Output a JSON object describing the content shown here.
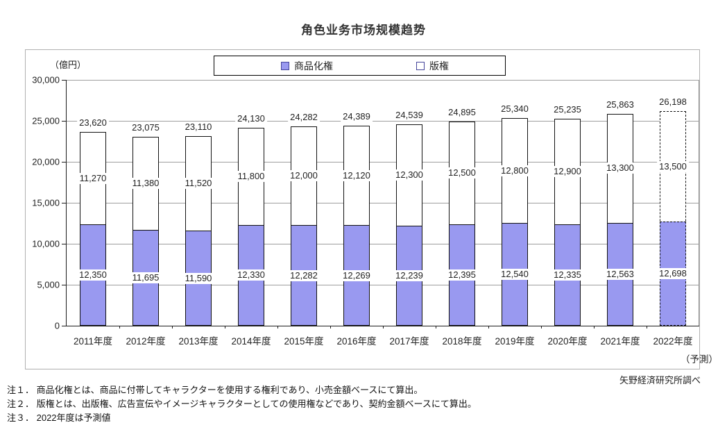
{
  "title": "角色业务市场规模趋势",
  "unit_label": "（億円）",
  "source": "矢野経済研究所調べ",
  "legend": [
    {
      "label": "商品化権",
      "swatch": "#9999F0"
    },
    {
      "label": "版権",
      "swatch": "#FFFFFF"
    }
  ],
  "notes": [
    "注１． 商品化権とは、商品に付帯してキャラクターを使用する権利であり、小売金額ベースにて算出。",
    "注２． 版権とは、出版権、広告宣伝やイメージキャラクターとしての使用権などであり、契約金額ベースにて算出。",
    "注３． 2022年度は予測値"
  ],
  "chart_data": {
    "type": "bar",
    "stacked": true,
    "title": "角色业务市场规模趋势",
    "ylabel": "（億円）",
    "xlabel": "",
    "categories": [
      "2011年度",
      "2012年度",
      "2013年度",
      "2014年度",
      "2015年度",
      "2016年度",
      "2017年度",
      "2018年度",
      "2019年度",
      "2020年度",
      "2021年度",
      "2022年度"
    ],
    "forecast_index": 11,
    "forecast_label": "（予測）",
    "series": [
      {
        "name": "商品化権",
        "color": "#9999F0",
        "values": [
          12350,
          11695,
          11590,
          12330,
          12282,
          12269,
          12239,
          12395,
          12540,
          12335,
          12563,
          12698
        ]
      },
      {
        "name": "版権",
        "color": "#FFFFFF",
        "values": [
          11270,
          11380,
          11520,
          11800,
          12000,
          12120,
          12300,
          12500,
          12800,
          12900,
          13300,
          13500
        ]
      }
    ],
    "totals": [
      23620,
      23075,
      23110,
      24130,
      24282,
      24389,
      24539,
      24895,
      25340,
      25235,
      25863,
      26198
    ],
    "ylim": [
      0,
      30000
    ],
    "ytick_step": 5000,
    "grid": true,
    "legend_position": "top"
  }
}
